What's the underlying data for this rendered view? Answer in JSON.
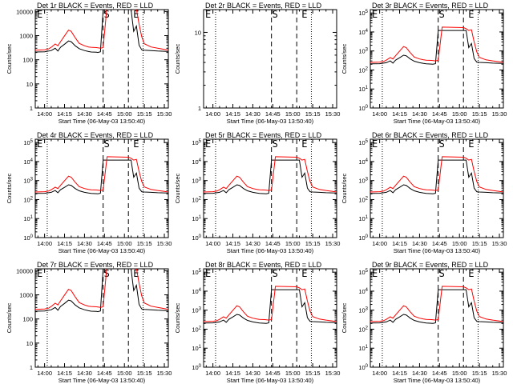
{
  "figure": {
    "panels": [
      {
        "title": "Det 1r BLACK = Events, RED = LLD",
        "ylabel": "Counts/sec",
        "xlabel": "Start Time (06-May-03 13:50:40)",
        "scale": "A"
      },
      {
        "title": "Det 2r BLACK = Events, RED = LLD",
        "ylabel": "Counts/sec",
        "xlabel": "Start Time (06-May-03 13:50:40)",
        "scale": "B"
      },
      {
        "title": "Det 3r BLACK = Events, RED = LLD",
        "ylabel": "Counts/sec",
        "xlabel": "Start Time (06-May-03 13:50:40)",
        "scale": "C"
      },
      {
        "title": "Det 4r BLACK = Events, RED = LLD",
        "ylabel": "Counts/sec",
        "xlabel": "Start Time (06-May-03 13:50:40)",
        "scale": "C"
      },
      {
        "title": "Det 5r BLACK = Events, RED = LLD",
        "ylabel": "Counts/sec",
        "xlabel": "Start Time (06-May-03 13:50:40)",
        "scale": "C"
      },
      {
        "title": "Det 6r BLACK = Events, RED = LLD",
        "ylabel": "Counts/sec",
        "xlabel": "Start Time (06-May-03 13:50:40)",
        "scale": "C"
      },
      {
        "title": "Det 7r BLACK = Events, RED = LLD",
        "ylabel": "Counts/sec",
        "xlabel": "Start Time (06-May-03 13:50:40)",
        "scale": "A"
      },
      {
        "title": "Det 8r BLACK = Events, RED = LLD",
        "ylabel": "Counts/sec",
        "xlabel": "Start Time (06-May-03 13:50:40)",
        "scale": "C"
      },
      {
        "title": "Det 9r BLACK = Events, RED = LLD",
        "ylabel": "Counts/sec",
        "xlabel": "Start Time (06-May-03 13:50:40)",
        "scale": "C"
      }
    ],
    "marker_labels": {
      "dashed_start": "S",
      "dashed_end": "E",
      "dotted_left": "E",
      "dotted_right": "E"
    },
    "colors": {
      "events": "#000000",
      "lld": "#ff0000",
      "axes": "#000000",
      "background": "#ffffff"
    }
  },
  "chart_data": {
    "type": "line",
    "layout": "3x3 grid of panels",
    "x_unit": "UT time, 06-May-03",
    "xlim": [
      "13:53",
      "15:33"
    ],
    "x_ticks": [
      "14:00",
      "14:15",
      "14:30",
      "14:45",
      "15:00",
      "15:15",
      "15:30"
    ],
    "y_scale": "log",
    "y_axes": {
      "A": {
        "ylim": [
          1,
          12000
        ],
        "ticks": [
          "1",
          "10",
          "100",
          "1000",
          "10000"
        ]
      },
      "B": {
        "ylim": [
          1,
          20
        ],
        "ticks": [
          "1",
          "10"
        ]
      },
      "C": {
        "ylim": [
          1,
          150000
        ],
        "ticks": [
          "10^0",
          "10^1",
          "10^2",
          "10^3",
          "10^4",
          "10^5"
        ]
      }
    },
    "vertical_lines": {
      "dotted": [
        "14:02",
        "15:14"
      ],
      "dashed": [
        "14:44",
        "15:03"
      ]
    },
    "series": [
      {
        "name": "BLACK = Events",
        "x": [
          "13:53",
          "14:00",
          "14:05",
          "14:08",
          "14:10",
          "14:12",
          "14:15",
          "14:18",
          "14:20",
          "14:23",
          "14:26",
          "14:30",
          "14:33",
          "14:35",
          "14:39",
          "14:40",
          "14:42",
          "14:44",
          "15:05",
          "15:07",
          "15:09",
          "15:11",
          "15:13",
          "15:15",
          "15:20",
          "15:25",
          "15:30",
          "15:33"
        ],
        "values": [
          210,
          215,
          240,
          300,
          230,
          330,
          440,
          600,
          560,
          380,
          290,
          240,
          220,
          210,
          205,
          200,
          215,
          12000,
          12000,
          1500,
          2500,
          400,
          260,
          250,
          240,
          230,
          225,
          220
        ]
      },
      {
        "name": "RED = LLD",
        "x": [
          "13:53",
          "14:00",
          "14:03",
          "14:05",
          "14:08",
          "14:10",
          "14:12",
          "14:15",
          "14:18",
          "14:20",
          "14:23",
          "14:26",
          "14:30",
          "14:33",
          "14:35",
          "14:39",
          "14:42",
          "14:44",
          "14:47",
          "15:03",
          "15:05",
          "15:07",
          "15:09",
          "15:11",
          "15:13",
          "15:15",
          "15:20",
          "15:25",
          "15:30",
          "15:33"
        ],
        "values": [
          250,
          260,
          280,
          330,
          450,
          380,
          560,
          980,
          1700,
          1500,
          820,
          480,
          380,
          340,
          330,
          320,
          300,
          320,
          18000,
          17000,
          15000,
          12000,
          13000,
          3000,
          900,
          460,
          340,
          300,
          270,
          250
        ]
      }
    ]
  }
}
